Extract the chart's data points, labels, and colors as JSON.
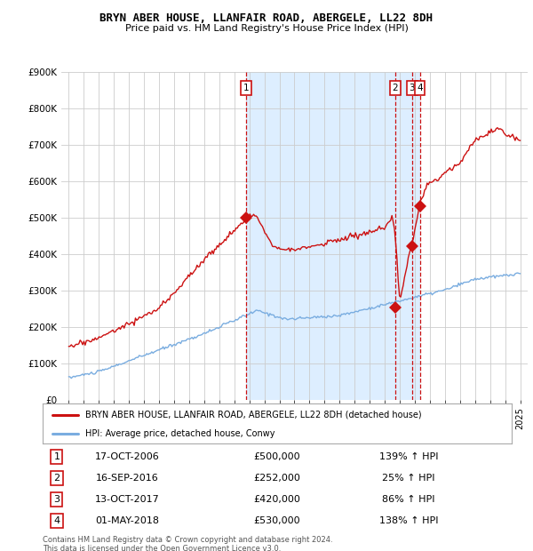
{
  "title": "BRYN ABER HOUSE, LLANFAIR ROAD, ABERGELE, LL22 8DH",
  "subtitle": "Price paid vs. HM Land Registry's House Price Index (HPI)",
  "ylim": [
    0,
    900000
  ],
  "yticks": [
    0,
    100000,
    200000,
    300000,
    400000,
    500000,
    600000,
    700000,
    800000,
    900000
  ],
  "ytick_labels": [
    "£0",
    "£100K",
    "£200K",
    "£300K",
    "£400K",
    "£500K",
    "£600K",
    "£700K",
    "£800K",
    "£900K"
  ],
  "hpi_color": "#7aade0",
  "price_color": "#cc1111",
  "bg_color": "#ffffff",
  "shade_color": "#ddeeff",
  "grid_color": "#cccccc",
  "transaction_color": "#cc1111",
  "transactions": [
    {
      "id": 1,
      "year": 2006.8,
      "price": 500000
    },
    {
      "id": 2,
      "year": 2016.7,
      "price": 252000
    },
    {
      "id": 3,
      "year": 2017.8,
      "price": 420000
    },
    {
      "id": 4,
      "year": 2018.33,
      "price": 530000
    }
  ],
  "shade_x_start": 2006.8,
  "shade_x_end": 2018.33,
  "legend_house_label": "BRYN ABER HOUSE, LLANFAIR ROAD, ABERGELE, LL22 8DH (detached house)",
  "legend_hpi_label": "HPI: Average price, detached house, Conwy",
  "footer": "Contains HM Land Registry data © Crown copyright and database right 2024.\nThis data is licensed under the Open Government Licence v3.0.",
  "table_rows": [
    {
      "id": 1,
      "date": "17-OCT-2006",
      "price": "£500,000",
      "pct": "139% ↑ HPI"
    },
    {
      "id": 2,
      "date": "16-SEP-2016",
      "price": "£252,000",
      "pct": "25% ↑ HPI"
    },
    {
      "id": 3,
      "date": "13-OCT-2017",
      "price": "£420,000",
      "pct": "86% ↑ HPI"
    },
    {
      "id": 4,
      "date": "01-MAY-2018",
      "price": "£530,000",
      "pct": "138% ↑ HPI"
    }
  ],
  "xmin": 1994.5,
  "xmax": 2025.5
}
